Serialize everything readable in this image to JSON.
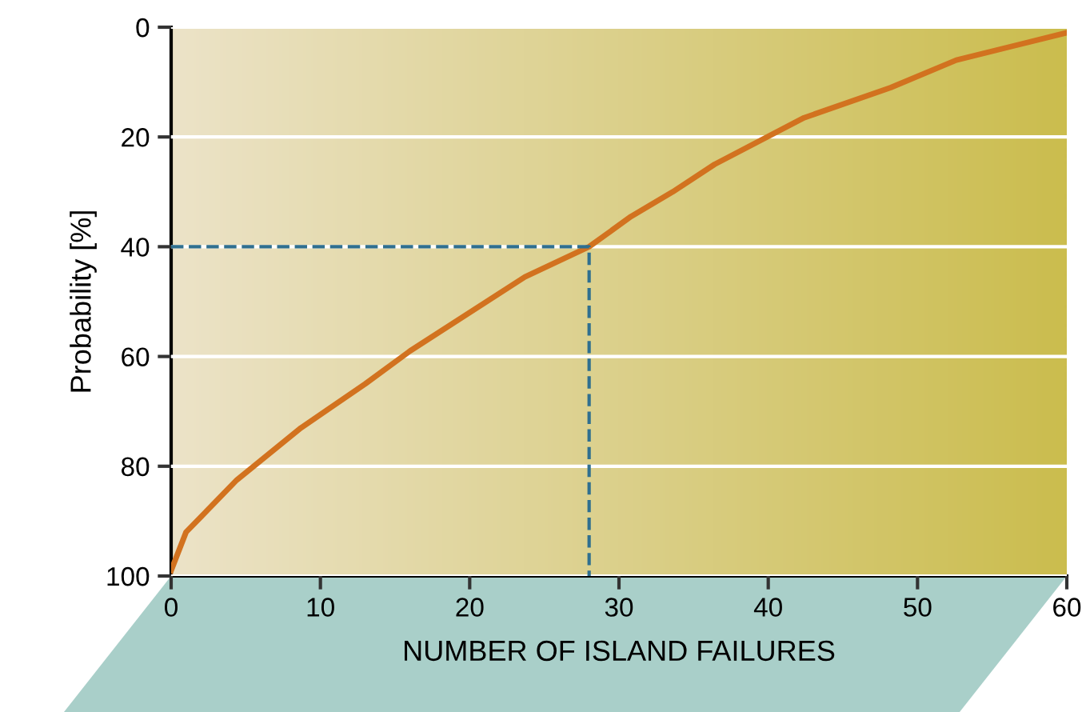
{
  "chart_data": {
    "type": "line",
    "xlabel": "NUMBER OF ISLAND FAILURES",
    "ylabel": "Probability [%]",
    "series": [
      {
        "color": "#d2721f",
        "x": [
          0,
          1,
          4.4,
          8.7,
          13,
          16,
          23.7,
          28,
          30.8,
          33.6,
          36.4,
          42.4,
          48.2,
          52.6,
          60
        ],
        "values": [
          99,
          92,
          82.5,
          73,
          65,
          59,
          45.5,
          40,
          34.5,
          30,
          25,
          16.5,
          11,
          6,
          1
        ]
      },
      {
        "type": "line",
        "color": "#2f6f8f",
        "line_style": "dashed",
        "x": [
          0,
          28,
          28
        ],
        "values": [
          40,
          40,
          100
        ]
      }
    ],
    "xlim": [
      0,
      60
    ],
    "xticks": [
      0,
      10,
      20,
      30,
      40,
      50,
      60
    ],
    "ylim": [
      100,
      0
    ],
    "yticks": [
      0,
      20,
      40,
      60,
      80,
      100
    ],
    "grid": "y"
  }
}
